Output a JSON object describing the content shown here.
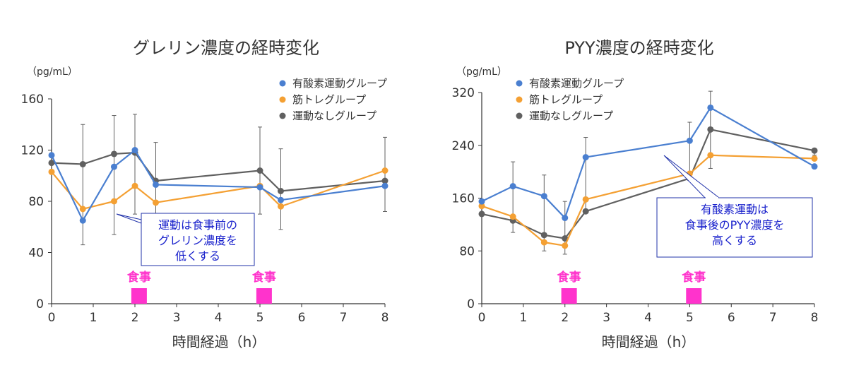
{
  "chart_data": [
    {
      "type": "line",
      "title": "グレリン濃度の経時変化",
      "unit": "（pg/mL）",
      "xlabel": "時間経過（h）",
      "ylabel": "",
      "x_ticks": [
        0,
        1,
        2,
        3,
        4,
        5,
        6,
        7,
        8
      ],
      "y_ticks": [
        0,
        40,
        80,
        120,
        160
      ],
      "xlim": [
        0,
        8
      ],
      "ylim": [
        0,
        160
      ],
      "legend_position": "top-right",
      "series": [
        {
          "name": "有酸素運動グループ",
          "color": "#4a7fd0",
          "x": [
            0,
            0.75,
            1.5,
            2,
            2.5,
            5,
            5.5,
            8
          ],
          "y": [
            116,
            65,
            107,
            120,
            93,
            91,
            81,
            92
          ]
        },
        {
          "name": "筋トレグループ",
          "color": "#f4a033",
          "x": [
            0,
            0.75,
            1.5,
            2,
            2.5,
            5,
            5.5,
            8
          ],
          "y": [
            103,
            74,
            80,
            92,
            79,
            92,
            76,
            104
          ]
        },
        {
          "name": "運動なしグループ",
          "color": "#606060",
          "x": [
            0,
            0.75,
            1.5,
            2,
            2.5,
            5,
            5.5,
            8
          ],
          "y": [
            110,
            109,
            117,
            118,
            96,
            104,
            88,
            96
          ],
          "error_low": [
            110,
            46,
            54,
            70,
            70,
            70,
            58,
            72
          ],
          "error_high": [
            110,
            140,
            147,
            148,
            126,
            138,
            121,
            130
          ]
        }
      ],
      "meals": [
        {
          "label": "食事",
          "x": 2.1
        },
        {
          "label": "食事",
          "x": 5.1
        }
      ],
      "annotation": {
        "lines": [
          "運動は食事前の",
          "グレリン濃度を",
          "低くする"
        ]
      }
    },
    {
      "type": "line",
      "title": "PYY濃度の経時変化",
      "unit": "（pg/mL）",
      "xlabel": "時間経過（h）",
      "ylabel": "",
      "x_ticks": [
        0,
        1,
        2,
        3,
        4,
        5,
        6,
        7,
        8
      ],
      "y_ticks": [
        0,
        80,
        160,
        240,
        320
      ],
      "xlim": [
        0,
        8
      ],
      "ylim": [
        0,
        320
      ],
      "legend_position": "top-left",
      "series": [
        {
          "name": "有酸素運動グループ",
          "color": "#4a7fd0",
          "x": [
            0,
            0.75,
            1.5,
            2,
            2.5,
            5,
            5.5,
            8
          ],
          "y": [
            155,
            178,
            163,
            130,
            222,
            247,
            297,
            208
          ]
        },
        {
          "name": "筋トレグループ",
          "color": "#f4a033",
          "x": [
            0,
            0.75,
            1.5,
            2,
            2.5,
            5,
            5.5,
            8
          ],
          "y": [
            148,
            132,
            93,
            88,
            158,
            197,
            225,
            220
          ]
        },
        {
          "name": "運動なしグループ",
          "color": "#606060",
          "x": [
            0,
            0.75,
            1.5,
            2,
            2.5,
            5,
            5.5,
            8
          ],
          "y": [
            136,
            126,
            104,
            99,
            140,
            190,
            264,
            232
          ],
          "error_low": [
            136,
            108,
            80,
            75,
            140,
            190,
            205,
            225
          ],
          "error_high": [
            136,
            215,
            195,
            155,
            252,
            275,
            322,
            235
          ]
        }
      ],
      "meals": [
        {
          "label": "食事",
          "x": 2.1
        },
        {
          "label": "食事",
          "x": 5.1
        }
      ],
      "annotation": {
        "lines": [
          "有酸素運動は",
          "食事後のPYY濃度を",
          "高くする"
        ]
      }
    }
  ],
  "style": {
    "meal_color": "#ff33cc",
    "annotation_text_color": "#1a22cc",
    "annotation_border_color": "#2233aa",
    "axis_color": "#333333",
    "error_bar_color": "#606060"
  }
}
